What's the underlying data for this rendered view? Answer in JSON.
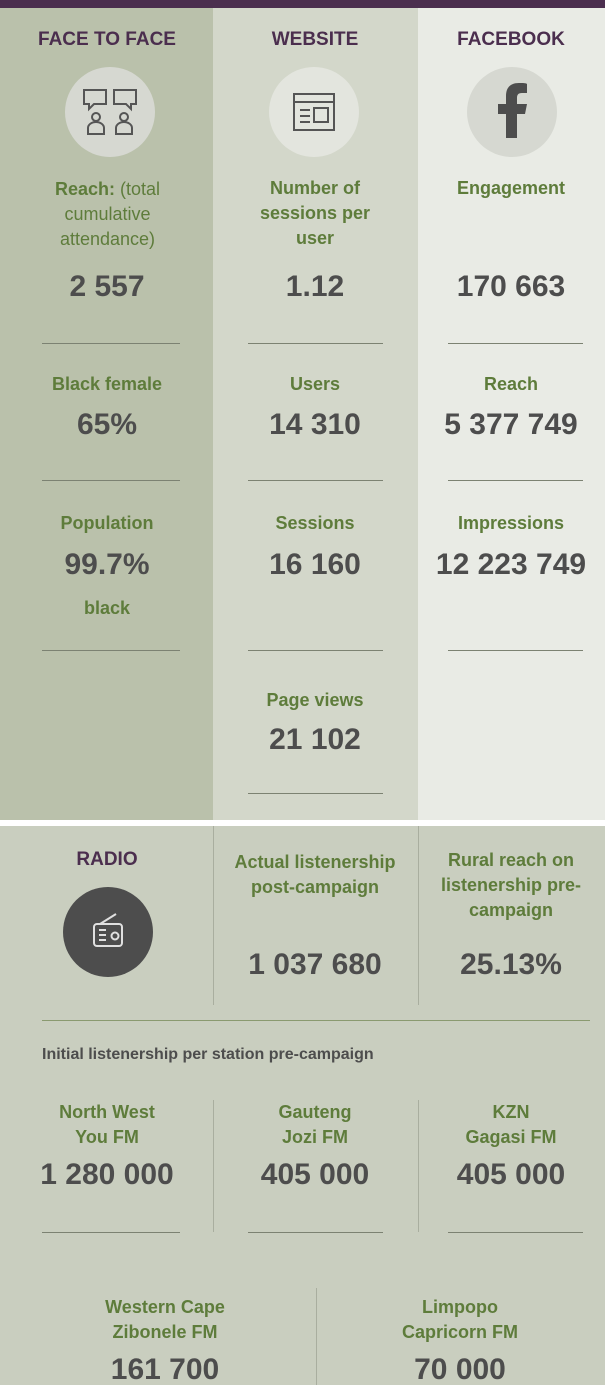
{
  "columns": [
    {
      "header": "FACE TO FACE",
      "metrics": [
        {
          "label": "Reach:",
          "note": "(total cumulative attendance)",
          "value": "2 557"
        },
        {
          "label": "Black female",
          "value": "65%"
        },
        {
          "label": "Population",
          "value": "99.7%",
          "sub": "black"
        }
      ]
    },
    {
      "header": "WEBSITE",
      "metrics": [
        {
          "label": "Number of sessions per user",
          "value": "1.12"
        },
        {
          "label": "Users",
          "value": "14 310"
        },
        {
          "label": "Sessions",
          "value": "16 160"
        },
        {
          "label": "Page views",
          "value": "21 102"
        }
      ]
    },
    {
      "header": "FACEBOOK",
      "metrics": [
        {
          "label": "Engagement",
          "value": "170 663"
        },
        {
          "label": "Reach",
          "value": "5 377 749"
        },
        {
          "label": "Impressions",
          "value": "12 223 749"
        }
      ]
    }
  ],
  "radio": {
    "header": "RADIO",
    "metrics": [
      {
        "label": "Actual listenership post-campaign",
        "value": "1 037 680"
      },
      {
        "label": "Rural reach on listenership pre-campaign",
        "value": "25.13%"
      }
    ],
    "stations_title": "Initial listenership per station pre-campaign",
    "stations": [
      {
        "region": "North West",
        "name": "You FM",
        "value": "1 280 000"
      },
      {
        "region": "Gauteng",
        "name": "Jozi FM",
        "value": "405 000"
      },
      {
        "region": "KZN",
        "name": "Gagasi FM",
        "value": "405 000"
      },
      {
        "region": "Western Cape",
        "name": "Zibonele FM",
        "value": "161 700"
      },
      {
        "region": "Limpopo",
        "name": "Capricorn FM",
        "value": "70 000"
      }
    ]
  }
}
